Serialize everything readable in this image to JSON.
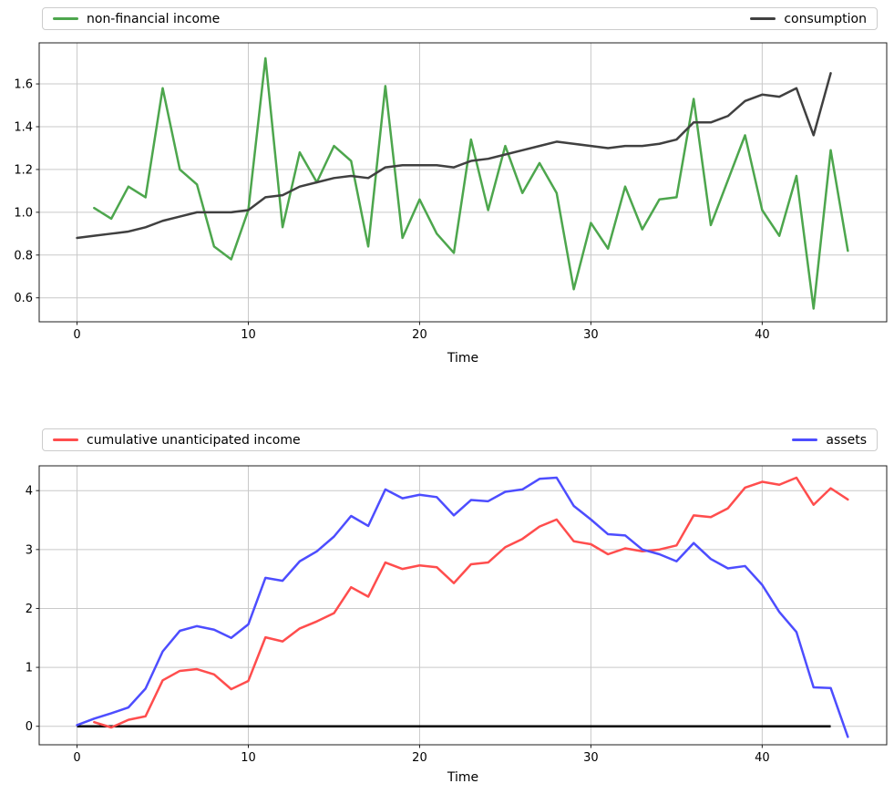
{
  "figure": {
    "background": "#ffffff",
    "grid_color": "#c9c9c9",
    "spine_color": "#1c1c1c",
    "tick_color": "#1c1c1c",
    "text_color": "#000000",
    "legend_border_color": "#cccccc"
  },
  "chart_data": [
    {
      "type": "line",
      "title": "",
      "xlabel": "Time",
      "ylabel": "",
      "grid": true,
      "legend_position": "above axes, expanded two columns (left and right)",
      "xlim": [
        -2.21,
        47.27
      ],
      "ylim": [
        0.488,
        1.792
      ],
      "xticks": [
        0,
        10,
        20,
        30,
        40
      ],
      "xtick_labels": [
        "0",
        "10",
        "20",
        "30",
        "40"
      ],
      "yticks": [
        0.6,
        0.8,
        1.0,
        1.2,
        1.4,
        1.6
      ],
      "ytick_labels": [
        "0.6",
        "0.8",
        "1.0",
        "1.2",
        "1.4",
        "1.6"
      ],
      "series": [
        {
          "name": "non-financial income",
          "color": "#4da64d",
          "width": 2.5,
          "x": [
            1,
            2,
            3,
            4,
            5,
            6,
            7,
            8,
            9,
            10,
            11,
            12,
            13,
            14,
            15,
            16,
            17,
            18,
            19,
            20,
            21,
            22,
            23,
            24,
            25,
            26,
            27,
            28,
            29,
            30,
            31,
            32,
            33,
            34,
            35,
            36,
            37,
            38,
            39,
            40,
            41,
            42,
            43,
            44,
            45
          ],
          "y": [
            1.02,
            0.97,
            1.12,
            1.07,
            1.58,
            1.2,
            1.13,
            0.84,
            0.78,
            1.01,
            1.72,
            0.93,
            1.28,
            1.14,
            1.31,
            1.24,
            0.84,
            1.59,
            0.88,
            1.06,
            0.9,
            0.81,
            1.34,
            1.01,
            1.31,
            1.09,
            1.23,
            1.09,
            0.64,
            0.95,
            0.83,
            1.12,
            0.92,
            1.06,
            1.07,
            1.53,
            0.94,
            1.15,
            1.36,
            1.01,
            0.89,
            1.17,
            0.55,
            1.29,
            0.82
          ]
        },
        {
          "name": "consumption",
          "color": "#404040",
          "width": 2.5,
          "x": [
            0,
            1,
            2,
            3,
            4,
            5,
            6,
            7,
            8,
            9,
            10,
            11,
            12,
            13,
            14,
            15,
            16,
            17,
            18,
            19,
            20,
            21,
            22,
            23,
            24,
            25,
            26,
            27,
            28,
            29,
            30,
            31,
            32,
            33,
            34,
            35,
            36,
            37,
            38,
            39,
            40,
            41,
            42,
            43,
            44
          ],
          "y": [
            0.88,
            0.89,
            0.9,
            0.91,
            0.93,
            0.96,
            0.98,
            1.0,
            1.0,
            1.0,
            1.01,
            1.07,
            1.08,
            1.12,
            1.14,
            1.16,
            1.17,
            1.16,
            1.21,
            1.22,
            1.22,
            1.22,
            1.21,
            1.24,
            1.25,
            1.27,
            1.29,
            1.31,
            1.33,
            1.32,
            1.31,
            1.3,
            1.31,
            1.31,
            1.32,
            1.34,
            1.42,
            1.42,
            1.45,
            1.52,
            1.55,
            1.54,
            1.58,
            1.36,
            1.65
          ]
        }
      ]
    },
    {
      "type": "line",
      "title": "",
      "xlabel": "Time",
      "ylabel": "",
      "grid": true,
      "legend_position": "above axes, expanded two columns (left and right)",
      "xlim": [
        -2.21,
        47.27
      ],
      "ylim": [
        -0.314,
        4.421
      ],
      "xticks": [
        0,
        10,
        20,
        30,
        40
      ],
      "xtick_labels": [
        "0",
        "10",
        "20",
        "30",
        "40"
      ],
      "yticks": [
        0,
        1,
        2,
        3,
        4
      ],
      "ytick_labels": [
        "0",
        "1",
        "2",
        "3",
        "4"
      ],
      "baseline": {
        "name": "zero-line",
        "color": "#000000",
        "width": 2.5,
        "x": [
          0,
          44
        ],
        "y": [
          0,
          0
        ]
      },
      "series": [
        {
          "name": "cumulative unanticipated income",
          "color": "#ff4d4d",
          "width": 2.5,
          "x": [
            1,
            2,
            3,
            4,
            5,
            6,
            7,
            8,
            9,
            10,
            11,
            12,
            13,
            14,
            15,
            16,
            17,
            18,
            19,
            20,
            21,
            22,
            23,
            24,
            25,
            26,
            27,
            28,
            29,
            30,
            31,
            32,
            33,
            34,
            35,
            36,
            37,
            38,
            39,
            40,
            41,
            42,
            43,
            44,
            45
          ],
          "y": [
            0.07,
            -0.02,
            0.11,
            0.17,
            0.78,
            0.94,
            0.97,
            0.88,
            0.63,
            0.77,
            1.51,
            1.44,
            1.66,
            1.78,
            1.92,
            2.36,
            2.2,
            2.78,
            2.67,
            2.73,
            2.7,
            2.43,
            2.75,
            2.78,
            3.04,
            3.18,
            3.39,
            3.51,
            3.14,
            3.09,
            2.92,
            3.02,
            2.97,
            3.0,
            3.07,
            3.58,
            3.55,
            3.7,
            4.05,
            4.15,
            4.1,
            4.22,
            3.76,
            4.04,
            3.85
          ]
        },
        {
          "name": "assets",
          "color": "#4d4dff",
          "width": 2.5,
          "x": [
            0,
            1,
            2,
            3,
            4,
            5,
            6,
            7,
            8,
            9,
            10,
            11,
            12,
            13,
            14,
            15,
            16,
            17,
            18,
            19,
            20,
            21,
            22,
            23,
            24,
            25,
            26,
            27,
            28,
            29,
            30,
            31,
            32,
            33,
            34,
            35,
            36,
            37,
            38,
            39,
            40,
            41,
            42,
            43,
            44,
            45
          ],
          "y": [
            0.02,
            0.13,
            0.22,
            0.32,
            0.64,
            1.27,
            1.62,
            1.7,
            1.64,
            1.5,
            1.73,
            2.52,
            2.47,
            2.8,
            2.97,
            3.22,
            3.57,
            3.4,
            4.02,
            3.87,
            3.93,
            3.89,
            3.58,
            3.84,
            3.82,
            3.98,
            4.02,
            4.2,
            4.22,
            3.74,
            3.51,
            3.26,
            3.24,
            3.0,
            2.92,
            2.8,
            3.11,
            2.84,
            2.68,
            2.72,
            2.4,
            1.94,
            1.6,
            0.66,
            0.65,
            -0.18
          ]
        }
      ]
    }
  ]
}
